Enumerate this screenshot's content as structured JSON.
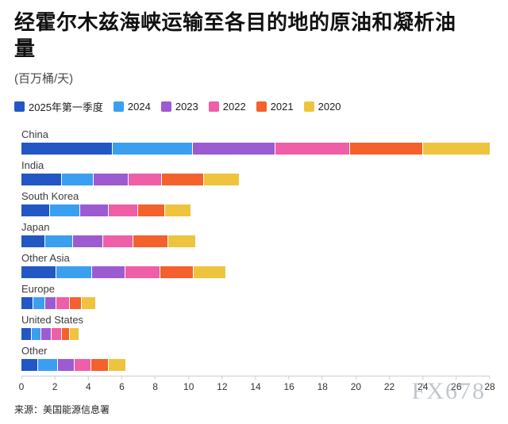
{
  "header": {
    "title": "经霍尔木兹海峡运输至各目的地的原油和凝析油量",
    "subtitle": "(百万桶/天)"
  },
  "footer": {
    "source": "来源：美国能源信息署",
    "watermark": "FX678"
  },
  "chart_data": {
    "type": "bar",
    "orientation": "horizontal",
    "stacked": true,
    "title": "经霍尔木兹海峡运输至各目的地的原油和凝析油量",
    "unit_label": "(百万桶/天)",
    "categories": [
      "China",
      "India",
      "South Korea",
      "Japan",
      "Other Asia",
      "Europe",
      "United States",
      "Other"
    ],
    "series": [
      {
        "name": "2025年第一季度",
        "color": "#2257c4",
        "values": [
          5.5,
          2.4,
          1.7,
          1.4,
          2.1,
          0.7,
          0.6,
          1.0
        ]
      },
      {
        "name": "2024",
        "color": "#3b9ff0",
        "values": [
          4.8,
          1.9,
          1.8,
          1.7,
          2.1,
          0.7,
          0.6,
          1.2
        ]
      },
      {
        "name": "2023",
        "color": "#9d5bd2",
        "values": [
          5.0,
          2.1,
          1.7,
          1.8,
          2.0,
          0.7,
          0.6,
          1.0
        ]
      },
      {
        "name": "2022",
        "color": "#ee5fa7",
        "values": [
          4.5,
          2.0,
          1.8,
          1.8,
          2.1,
          0.8,
          0.6,
          1.0
        ]
      },
      {
        "name": "2021",
        "color": "#f4612c",
        "values": [
          4.4,
          2.5,
          1.6,
          2.1,
          2.0,
          0.7,
          0.5,
          1.0
        ]
      },
      {
        "name": "2020",
        "color": "#eec43e",
        "values": [
          4.0,
          2.1,
          1.5,
          1.6,
          1.9,
          0.8,
          0.5,
          1.0
        ]
      }
    ],
    "xlim": [
      0,
      28
    ],
    "x_ticks": [
      0,
      2,
      4,
      6,
      8,
      10,
      12,
      14,
      16,
      18,
      20,
      22,
      24,
      26,
      28
    ],
    "legend_position": "top",
    "grid": false
  }
}
